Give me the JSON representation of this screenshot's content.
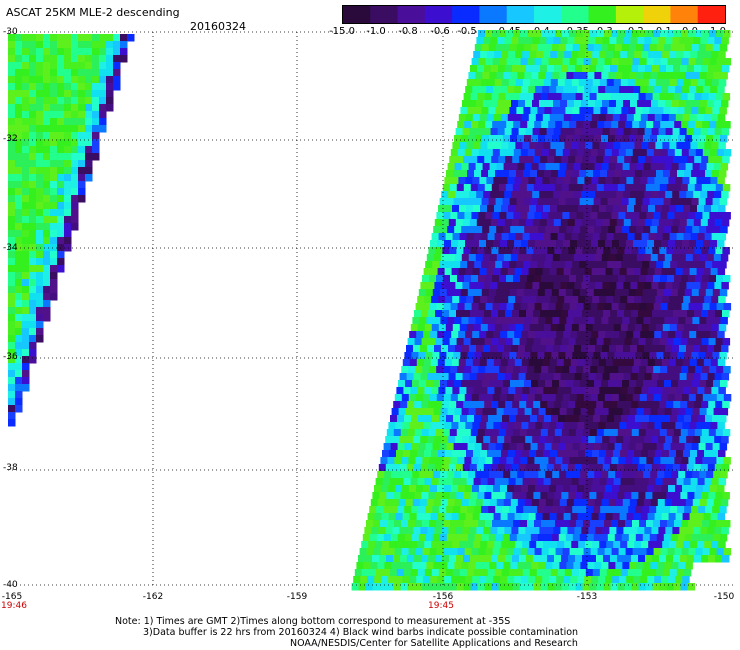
{
  "header": {
    "title": "ASCAT 25KM MLE-2 descending",
    "date": "20160324"
  },
  "colorbar": {
    "labels": [
      "-15.0",
      "-1.0",
      "-0.8",
      "-0.6",
      "-0.5",
      "-0.45",
      "-0.4",
      "-0.35",
      "-0.3",
      "-0.2",
      "-0.1",
      "0.0",
      "1.0"
    ],
    "colors": [
      "#2a0a3a",
      "#3a0d62",
      "#4a0f9a",
      "#3c0fd0",
      "#0a2bff",
      "#0a78ff",
      "#16c8ff",
      "#1ef0e6",
      "#22ff8c",
      "#33f01e",
      "#b4f00a",
      "#f0d20a",
      "#ff820a",
      "#ff2010"
    ]
  },
  "map": {
    "lat_labels": [
      "-30",
      "-32",
      "-34",
      "-36",
      "-38",
      "-40"
    ],
    "lon_labels": [
      "-165",
      "-162",
      "-159",
      "-156",
      "-153",
      "-150"
    ],
    "times": [
      "19:46",
      "19:45"
    ]
  },
  "notes": {
    "line1": "Note: 1) Times are GMT 2)Times along bottom correspond to measurement at -35S",
    "line2": "3)Data buffer is 22 hrs from 20160324 4) Black wind barbs indicate possible contamination",
    "line3": "NOAA/NESDIS/Center for Satellite Applications and Research"
  }
}
